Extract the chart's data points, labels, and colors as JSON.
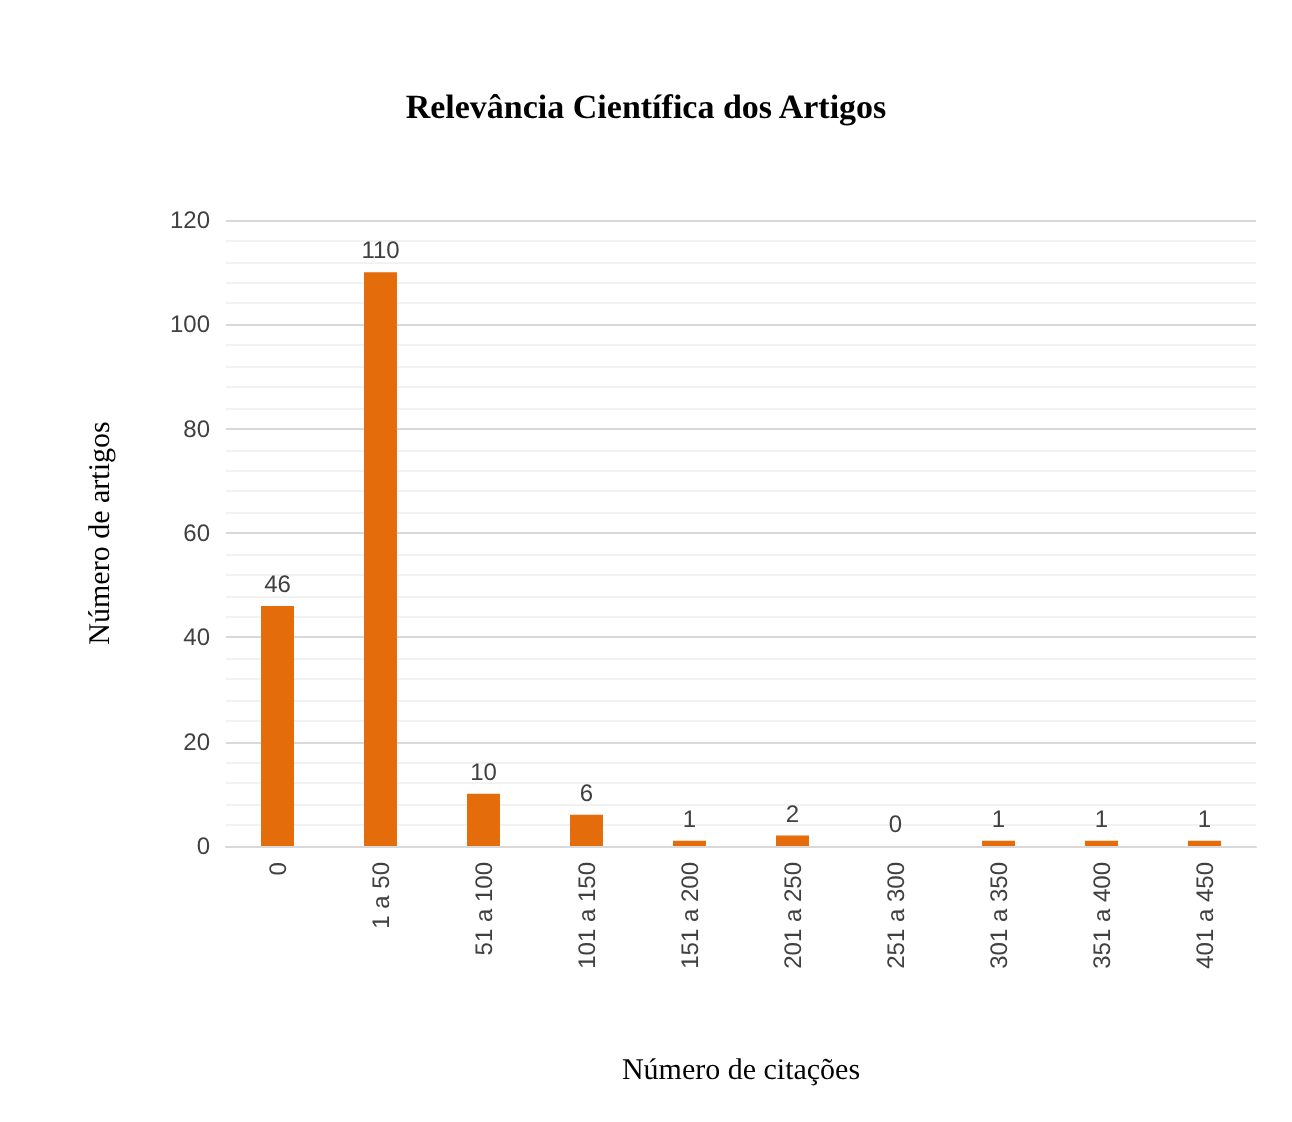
{
  "chart_data": {
    "type": "bar",
    "title": "Relevância Científica dos Artigos",
    "xlabel": "Número de citações",
    "ylabel": "Número de artigos",
    "categories": [
      "0",
      "1 a 50",
      "51 a 100",
      "101 a 150",
      "151 a 200",
      "201 a 250",
      "251 a 300",
      "301 a 350",
      "351 a 400",
      "401 a 450"
    ],
    "values": [
      46,
      110,
      10,
      6,
      1,
      2,
      0,
      1,
      1,
      1
    ],
    "color": "#e46c0a",
    "ylim": [
      0,
      120
    ],
    "yticks": [
      0,
      20,
      40,
      60,
      80,
      100,
      120
    ],
    "grid": "y",
    "data_labels": true
  }
}
